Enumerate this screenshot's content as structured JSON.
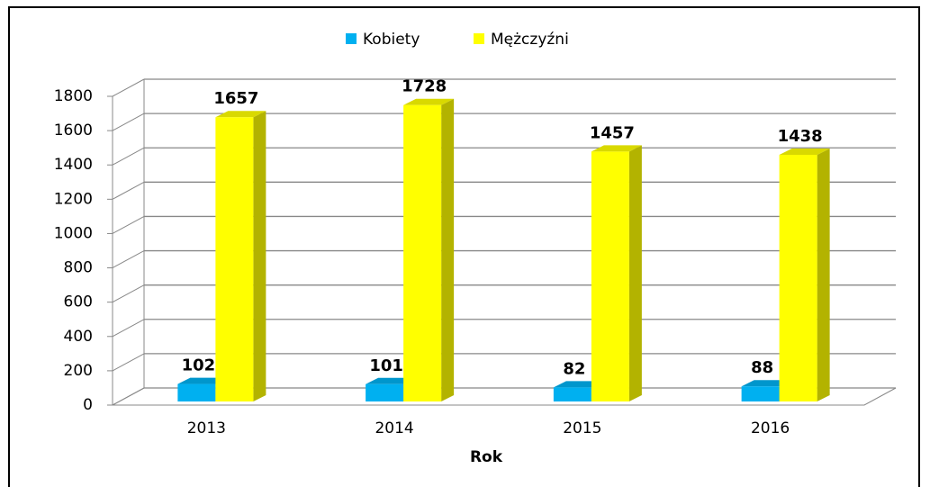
{
  "chart_data": {
    "type": "bar3d",
    "x_label": "Rok",
    "categories": [
      "2013",
      "2014",
      "2015",
      "2016"
    ],
    "series": [
      {
        "name": "Kobiety",
        "color": "#00b0f0",
        "values": [
          102,
          101,
          82,
          88
        ]
      },
      {
        "name": "Mężczyźni",
        "color": "#ffff00",
        "values": [
          1657,
          1728,
          1457,
          1438
        ]
      }
    ],
    "ylim": [
      0,
      1800
    ],
    "yticks": [
      0,
      200,
      400,
      600,
      800,
      1000,
      1200,
      1400,
      1600,
      1800
    ],
    "grid": true,
    "legend": "top"
  }
}
